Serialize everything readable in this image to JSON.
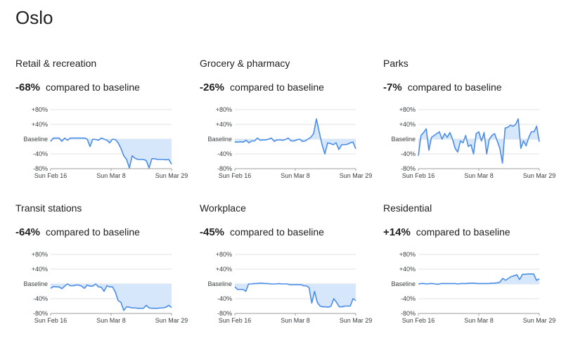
{
  "page": {
    "title": "Oslo"
  },
  "labels": {
    "compared": "compared to baseline"
  },
  "styles": {
    "line_color": "#4a8de8",
    "fill_color": "#d6e6fb",
    "grid_color": "#e0e0e0",
    "axis_color": "#9e9e9e"
  },
  "chart_data": [
    {
      "type": "area",
      "title": "Retail & recreation",
      "summary": "-68%",
      "yticks": [
        "+80%",
        "+40%",
        "Baseline",
        "-40%",
        "-80%"
      ],
      "xticks": [
        "Sun Feb 16",
        "Sun Mar 8",
        "Sun Mar 29"
      ],
      "ylim": [
        -80,
        80
      ],
      "xlim": [
        0,
        43
      ],
      "values": [
        -6,
        3,
        3,
        3,
        -6,
        3,
        -3,
        3,
        3,
        3,
        3,
        3,
        3,
        0,
        -20,
        0,
        -1,
        -3,
        3,
        0,
        -3,
        -10,
        0,
        -1,
        -10,
        -25,
        -45,
        -55,
        -78,
        -45,
        -52,
        -55,
        -55,
        -55,
        -58,
        -78,
        -53,
        -53,
        -55,
        -55,
        -55,
        -56,
        -55,
        -68
      ]
    },
    {
      "type": "area",
      "title": "Grocery & pharmacy",
      "summary": "-26%",
      "yticks": [
        "+80%",
        "+40%",
        "Baseline",
        "-40%",
        "-80%"
      ],
      "xticks": [
        "Sun Feb 16",
        "Sun Mar 8",
        "Sun Mar 29"
      ],
      "ylim": [
        -80,
        80
      ],
      "xlim": [
        0,
        43
      ],
      "values": [
        -8,
        -8,
        -7,
        -8,
        -3,
        -10,
        -5,
        -5,
        3,
        -3,
        -2,
        -2,
        0,
        3,
        -6,
        -2,
        -2,
        -3,
        -1,
        3,
        -5,
        -5,
        -2,
        0,
        -6,
        -5,
        0,
        5,
        15,
        55,
        20,
        -15,
        -40,
        -10,
        -12,
        -15,
        -10,
        -28,
        -15,
        -15,
        -14,
        -10,
        -8,
        -26
      ]
    },
    {
      "type": "area",
      "title": "Parks",
      "summary": "-7%",
      "yticks": [
        "+80%",
        "+40%",
        "Baseline",
        "-40%",
        "-80%"
      ],
      "xticks": [
        "Sun Feb 16",
        "Sun Mar 8",
        "Sun Mar 29"
      ],
      "ylim": [
        -80,
        80
      ],
      "xlim": [
        0,
        43
      ],
      "values": [
        -45,
        10,
        18,
        28,
        -30,
        5,
        10,
        15,
        20,
        0,
        15,
        5,
        18,
        0,
        -25,
        -35,
        -5,
        -10,
        10,
        -20,
        -15,
        -40,
        15,
        20,
        -5,
        18,
        -40,
        0,
        10,
        15,
        -5,
        -25,
        -65,
        30,
        32,
        38,
        35,
        40,
        55,
        -25,
        -5,
        -18,
        5,
        20,
        20,
        35,
        -7
      ]
    },
    {
      "type": "area",
      "title": "Transit stations",
      "summary": "-64%",
      "yticks": [
        "+80%",
        "+40%",
        "Baseline",
        "-40%",
        "-80%"
      ],
      "xticks": [
        "Sun Feb 16",
        "Sun Mar 8",
        "Sun Mar 29"
      ],
      "ylim": [
        -80,
        80
      ],
      "xlim": [
        0,
        43
      ],
      "values": [
        -12,
        -7,
        -8,
        -8,
        -13,
        -6,
        0,
        -5,
        -5,
        -3,
        -3,
        -6,
        -12,
        -3,
        -6,
        -6,
        0,
        -8,
        -9,
        -20,
        -5,
        -8,
        -8,
        -22,
        -45,
        -50,
        -72,
        -62,
        -63,
        -65,
        -65,
        -66,
        -66,
        -66,
        -58,
        -65,
        -66,
        -66,
        -66,
        -65,
        -65,
        -63,
        -58,
        -64
      ]
    },
    {
      "type": "area",
      "title": "Workplace",
      "summary": "-45%",
      "yticks": [
        "+80%",
        "+40%",
        "Baseline",
        "-40%",
        "-80%"
      ],
      "xticks": [
        "Sun Feb 16",
        "Sun Mar 8",
        "Sun Mar 29"
      ],
      "ylim": [
        -80,
        80
      ],
      "xlim": [
        0,
        43
      ],
      "values": [
        -8,
        -15,
        -15,
        -15,
        -20,
        0,
        0,
        1,
        1,
        2,
        2,
        1,
        1,
        0,
        0,
        0,
        1,
        0,
        0,
        0,
        -2,
        -2,
        -2,
        -2,
        -2,
        -5,
        -5,
        -10,
        -52,
        -20,
        -50,
        -60,
        -62,
        -62,
        -63,
        -60,
        -40,
        -50,
        -62,
        -62,
        -60,
        -60,
        -60,
        -40,
        -45
      ]
    },
    {
      "type": "area",
      "title": "Residential",
      "summary": "+14%",
      "yticks": [
        "+80%",
        "+40%",
        "Baseline",
        "-40%",
        "-80%"
      ],
      "xticks": [
        "Sun Feb 16",
        "Sun Mar 8",
        "Sun Mar 29"
      ],
      "ylim": [
        -80,
        80
      ],
      "xlim": [
        0,
        43
      ],
      "values": [
        0,
        1,
        1,
        0,
        1,
        1,
        0,
        -1,
        1,
        1,
        1,
        1,
        1,
        1,
        0,
        1,
        1,
        1,
        2,
        2,
        2,
        1,
        1,
        1,
        1,
        1,
        2,
        2,
        3,
        5,
        15,
        10,
        15,
        20,
        22,
        25,
        12,
        26,
        26,
        27,
        27,
        27,
        10,
        14
      ]
    }
  ]
}
